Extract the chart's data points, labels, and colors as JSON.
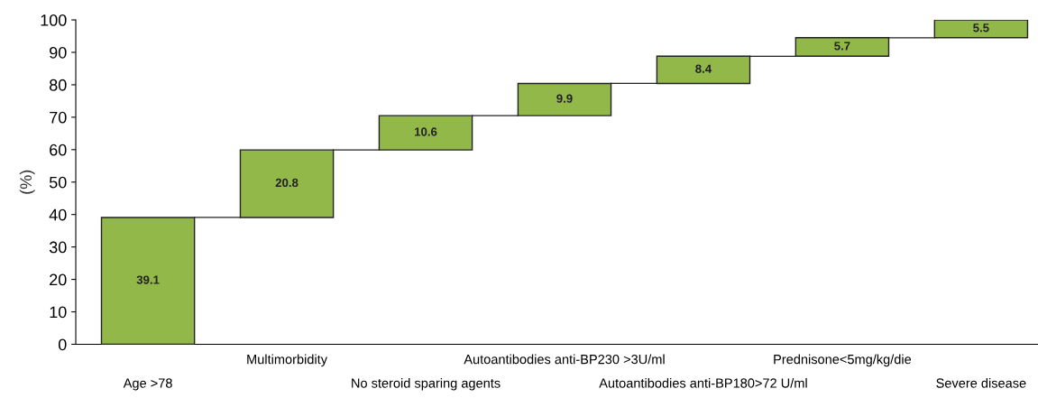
{
  "chart_data": {
    "type": "bar",
    "ylabel": "(%)",
    "categories": [
      "Age >78",
      "Multimorbidity",
      "No steroid sparing agents",
      "Autoantibodies anti-BP230 >3U/ml",
      "Autoantibodies anti-BP180>72 U/ml",
      "Prednisone<5mg/kg/die",
      "Severe disease"
    ],
    "values": [
      39.1,
      20.8,
      10.6,
      9.9,
      8.4,
      5.7,
      5.5
    ],
    "base": [
      0,
      39.1,
      59.9,
      70.5,
      80.4,
      88.8,
      94.5
    ],
    "color": "#92b84a",
    "ylim": [
      0,
      100
    ],
    "yticks": [
      0,
      10,
      20,
      30,
      40,
      50,
      60,
      70,
      80,
      90,
      100
    ],
    "data_labels": true,
    "grid": false,
    "legend": false
  }
}
